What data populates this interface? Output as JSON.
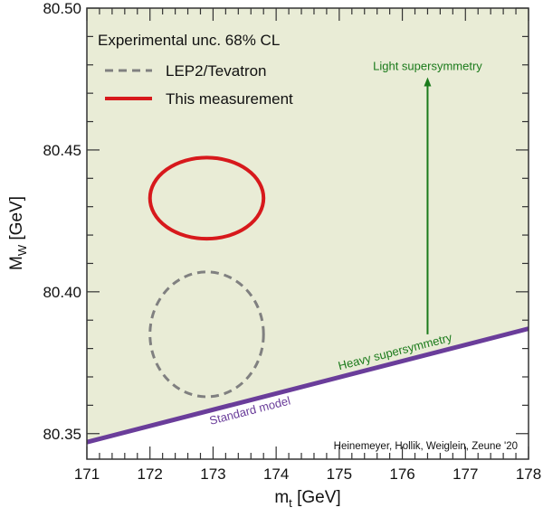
{
  "chart_data": {
    "type": "line",
    "xlabel": "m",
    "xlabel_sub": "t",
    "xlabel_unit": " [GeV]",
    "ylabel": "M",
    "ylabel_sub": "W",
    "ylabel_unit": " [GeV]",
    "xlim": [
      171,
      178
    ],
    "ylim": [
      80.341,
      80.5
    ],
    "xticks": [
      171,
      172,
      173,
      174,
      175,
      176,
      177,
      178
    ],
    "yticks": [
      80.35,
      80.4,
      80.45,
      80.5
    ],
    "ytick_labels": [
      "80.35",
      "80.40",
      "80.45",
      "80.50"
    ],
    "grid": false,
    "legend_title": "Experimental unc. 68% CL",
    "legend_placement": "top-left",
    "series": [
      {
        "name": "LEP2/Tevatron",
        "kind": "ellipse",
        "style": "dashed",
        "color": "#808080",
        "center": [
          172.9,
          80.385
        ],
        "semi_axes": [
          0.9,
          0.022
        ]
      },
      {
        "name": "This measurement",
        "kind": "ellipse",
        "style": "solid",
        "color": "#d7191c",
        "center": [
          172.9,
          80.433
        ],
        "semi_axes": [
          0.9,
          0.0143
        ]
      }
    ],
    "standard_model_line": {
      "label": "Standard model",
      "x": [
        171,
        178
      ],
      "y": [
        80.347,
        80.387
      ],
      "color": "#6a3d9a"
    },
    "region_fill": "#e9ecd6",
    "annotations": {
      "heavy": "Heavy supersymmetry",
      "light": "Light supersymmetry",
      "arrow": {
        "x": 176.4,
        "y_from": 80.385,
        "y_to": 80.475
      },
      "color": "#1a7a1a",
      "credit": "Heinemeyer, Hollik, Weiglein, Zeune '20"
    }
  }
}
